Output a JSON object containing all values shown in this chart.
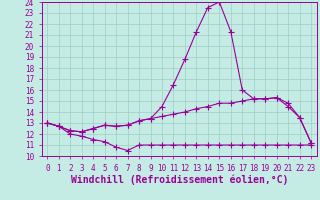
{
  "xlabel": "Windchill (Refroidissement éolien,°C)",
  "background_color": "#c5ece4",
  "grid_color": "#9dcfc5",
  "line_color": "#990099",
  "xlim": [
    -0.5,
    23.5
  ],
  "ylim": [
    10,
    24
  ],
  "xticks": [
    0,
    1,
    2,
    3,
    4,
    5,
    6,
    7,
    8,
    9,
    10,
    11,
    12,
    13,
    14,
    15,
    16,
    17,
    18,
    19,
    20,
    21,
    22,
    23
  ],
  "yticks": [
    10,
    11,
    12,
    13,
    14,
    15,
    16,
    17,
    18,
    19,
    20,
    21,
    22,
    23,
    24
  ],
  "line1_x": [
    0,
    1,
    2,
    3,
    4,
    5,
    6,
    7,
    8,
    9,
    10,
    11,
    12,
    13,
    14,
    15,
    16,
    17,
    18,
    19,
    20,
    21,
    22,
    23
  ],
  "line1_y": [
    13.0,
    12.7,
    12.0,
    11.8,
    11.5,
    11.3,
    10.8,
    10.5,
    11.0,
    11.0,
    11.0,
    11.0,
    11.0,
    11.0,
    11.0,
    11.0,
    11.0,
    11.0,
    11.0,
    11.0,
    11.0,
    11.0,
    11.0,
    11.0
  ],
  "line2_x": [
    0,
    1,
    2,
    3,
    4,
    5,
    6,
    7,
    8,
    9,
    10,
    11,
    12,
    13,
    14,
    15,
    16,
    17,
    18,
    19,
    20,
    21,
    22,
    23
  ],
  "line2_y": [
    13.0,
    12.7,
    12.3,
    12.2,
    12.5,
    12.8,
    12.7,
    12.8,
    13.2,
    13.4,
    13.6,
    13.8,
    14.0,
    14.3,
    14.5,
    14.8,
    14.8,
    15.0,
    15.2,
    15.2,
    15.3,
    14.5,
    13.5,
    11.2
  ],
  "line3_x": [
    0,
    1,
    2,
    3,
    4,
    5,
    6,
    7,
    8,
    9,
    10,
    11,
    12,
    13,
    14,
    15,
    16,
    17,
    18,
    19,
    20,
    21,
    22,
    23
  ],
  "line3_y": [
    13.0,
    12.7,
    12.3,
    12.2,
    12.5,
    12.8,
    12.7,
    12.8,
    13.2,
    13.4,
    14.5,
    16.5,
    18.8,
    21.3,
    23.5,
    24.0,
    21.3,
    16.0,
    15.2,
    15.2,
    15.3,
    14.8,
    13.5,
    11.2
  ],
  "tick_fontsize": 5.5,
  "label_fontsize": 7.0
}
